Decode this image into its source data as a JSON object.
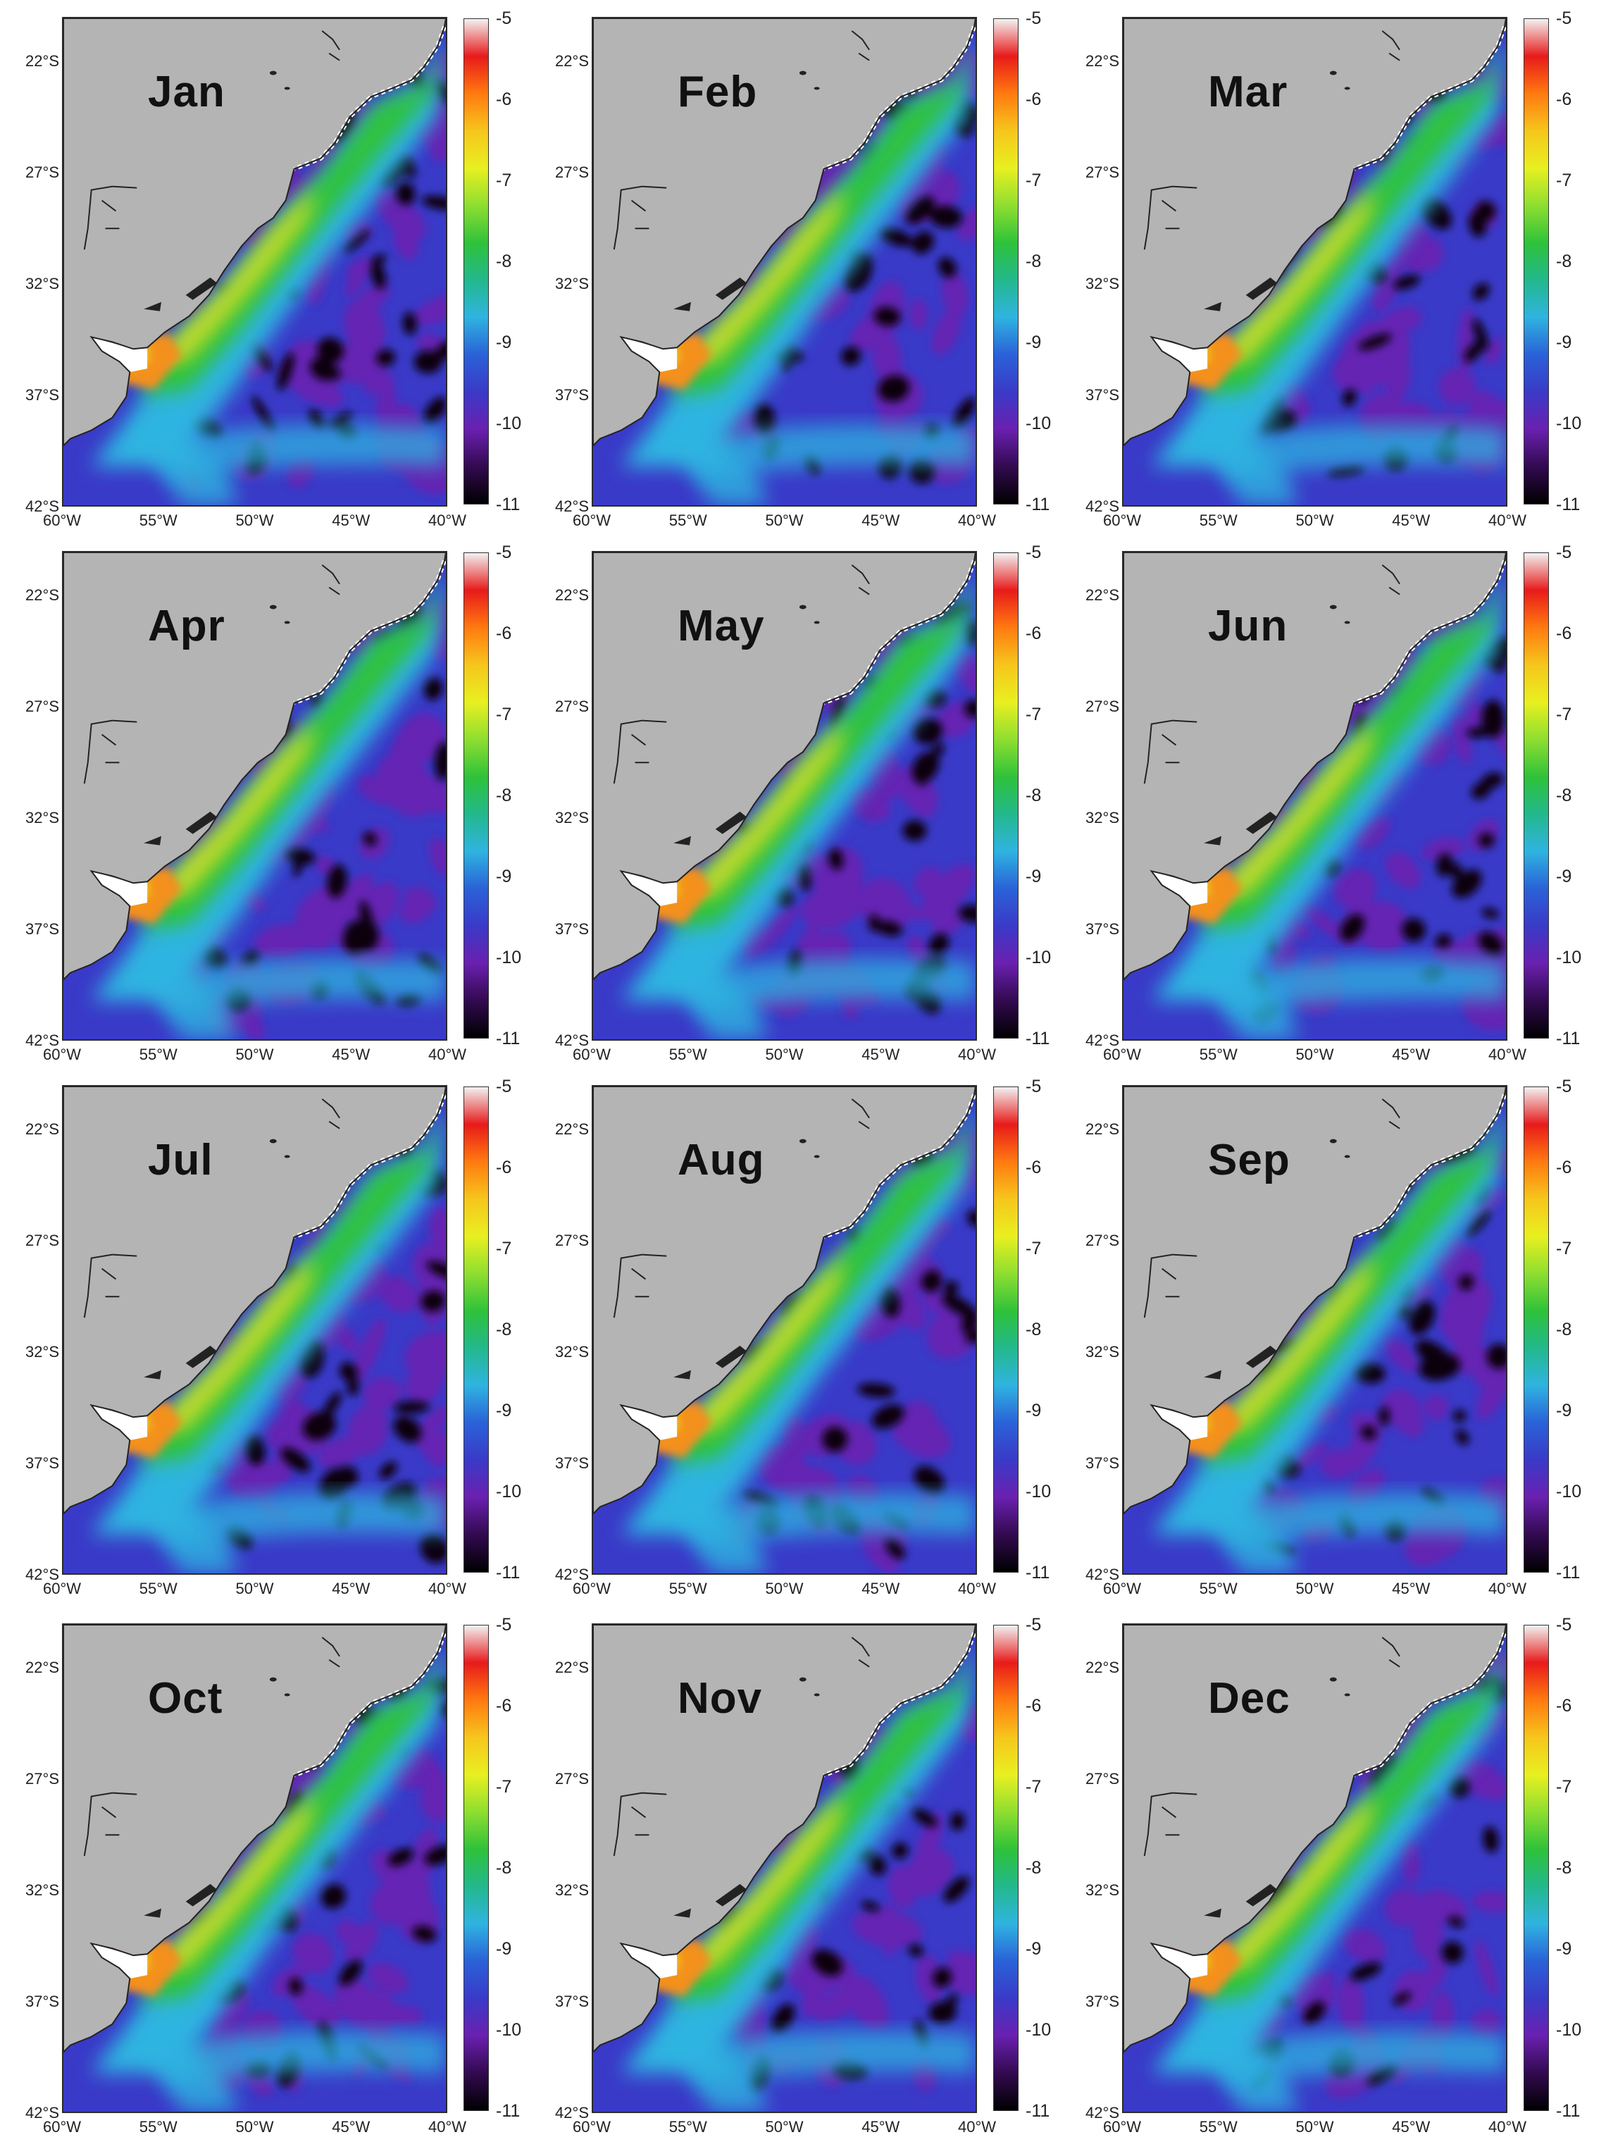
{
  "months": [
    "Jan",
    "Feb",
    "Mar",
    "Apr",
    "May",
    "Jun",
    "Jul",
    "Aug",
    "Sep",
    "Oct",
    "Nov",
    "Dec"
  ],
  "lat_ticks": [
    "22°S",
    "27°S",
    "32°S",
    "37°S",
    "42°S"
  ],
  "lon_ticks": [
    "60°W",
    "55°W",
    "50°W",
    "45°W",
    "40°W"
  ],
  "colorbar_ticks": [
    "-5",
    "-6",
    "-7",
    "-8",
    "-9",
    "-10",
    "-11"
  ],
  "colorbar_range": [
    -11,
    -5
  ],
  "map_extent": {
    "lon": [
      -60,
      -40
    ],
    "lat": [
      -42,
      -20
    ]
  },
  "colors": {
    "land": "#b4b4b4",
    "background_ocean": "#3a3ac8",
    "eddy_purple": "#6a20b0",
    "eddy_black": "#0a0610",
    "shelf_cyan": "#2fb4e0",
    "shelf_green": "#2ec23a",
    "yellow": "#e8e020",
    "orange": "#f4901a",
    "red": "#e81a1a",
    "coastline": "#222222"
  },
  "colormap": [
    "#f2f2f2",
    "#e81a1a",
    "#ff7a10",
    "#f6c61c",
    "#e8f020",
    "#8ede30",
    "#2ec23a",
    "#23b88c",
    "#2fb4e0",
    "#2a62d8",
    "#3a3ac8",
    "#6a20b0",
    "#320a50",
    "#000000"
  ]
}
